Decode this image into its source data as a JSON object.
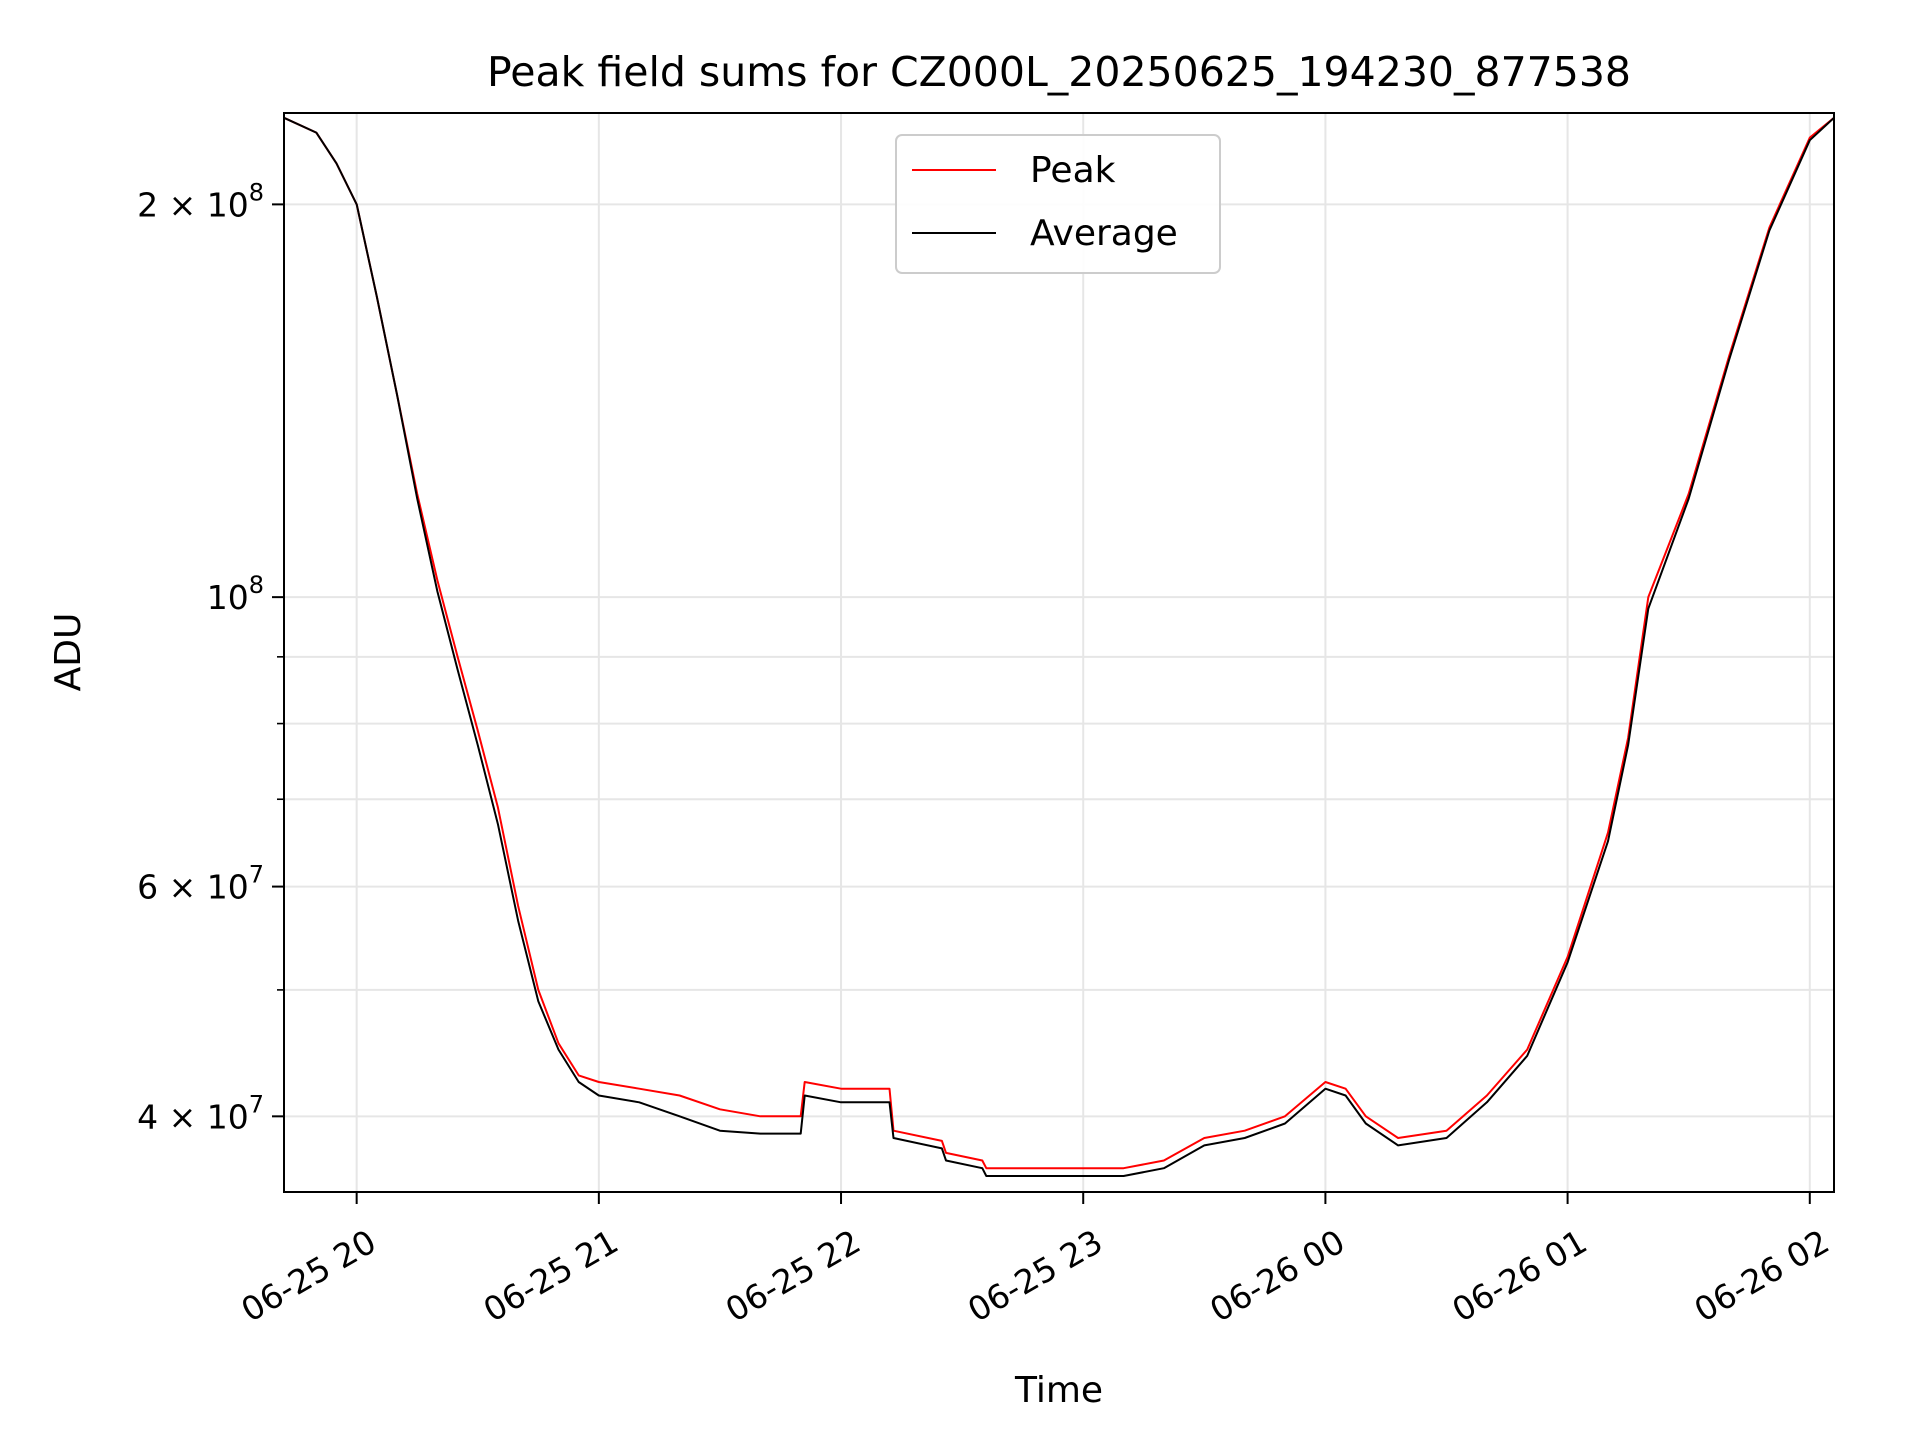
{
  "chart_data": {
    "type": "line",
    "title": "Peak field sums for CZ000L_20250625_194230_877538",
    "xlabel": "Time",
    "ylabel": "ADU",
    "y_scale": "log",
    "xlim": [
      "2025-06-25 19:42",
      "2025-06-26 02:06"
    ],
    "ylim": [
      35000000,
      235000000
    ],
    "grid": true,
    "legend": "upper center",
    "x_ticks": [
      {
        "value": "2025-06-25 20:00",
        "label": "06-25 20"
      },
      {
        "value": "2025-06-25 21:00",
        "label": "06-25 21"
      },
      {
        "value": "2025-06-25 22:00",
        "label": "06-25 22"
      },
      {
        "value": "2025-06-25 23:00",
        "label": "06-25 23"
      },
      {
        "value": "2025-06-26 00:00",
        "label": "06-26 00"
      },
      {
        "value": "2025-06-26 01:00",
        "label": "06-26 01"
      },
      {
        "value": "2025-06-26 02:00",
        "label": "06-26 02"
      }
    ],
    "y_ticks": [
      {
        "value": 40000000,
        "base": "4 × 10",
        "exp": "7"
      },
      {
        "value": 60000000,
        "base": "6 × 10",
        "exp": "7"
      },
      {
        "value": 100000000,
        "base": "10",
        "exp": "8"
      },
      {
        "value": 200000000,
        "base": "2 × 10",
        "exp": "8"
      }
    ],
    "y_minor_ticks": [
      50000000,
      70000000,
      80000000,
      90000000
    ],
    "series": [
      {
        "name": "Peak",
        "color": "#ff0000",
        "x": [
          "2025-06-25 19:42",
          "2025-06-25 19:50",
          "2025-06-25 19:55",
          "2025-06-25 20:00",
          "2025-06-25 20:05",
          "2025-06-25 20:10",
          "2025-06-25 20:15",
          "2025-06-25 20:20",
          "2025-06-25 20:25",
          "2025-06-25 20:30",
          "2025-06-25 20:35",
          "2025-06-25 20:40",
          "2025-06-25 20:45",
          "2025-06-25 20:50",
          "2025-06-25 20:55",
          "2025-06-25 21:00",
          "2025-06-25 21:10",
          "2025-06-25 21:20",
          "2025-06-25 21:30",
          "2025-06-25 21:40",
          "2025-06-25 21:50",
          "2025-06-25 21:51",
          "2025-06-25 22:00",
          "2025-06-25 22:12",
          "2025-06-25 22:13",
          "2025-06-25 22:25",
          "2025-06-25 22:26",
          "2025-06-25 22:35",
          "2025-06-25 22:36",
          "2025-06-25 22:45",
          "2025-06-25 23:00",
          "2025-06-25 23:10",
          "2025-06-25 23:20",
          "2025-06-25 23:30",
          "2025-06-25 23:40",
          "2025-06-25 23:50",
          "2025-06-26 00:00",
          "2025-06-26 00:05",
          "2025-06-26 00:10",
          "2025-06-26 00:18",
          "2025-06-26 00:30",
          "2025-06-26 00:40",
          "2025-06-26 00:50",
          "2025-06-26 01:00",
          "2025-06-26 01:10",
          "2025-06-26 01:15",
          "2025-06-26 01:20",
          "2025-06-26 01:30",
          "2025-06-26 01:40",
          "2025-06-26 01:50",
          "2025-06-26 02:00",
          "2025-06-26 02:06"
        ],
        "y": [
          233000000,
          227000000,
          215000000,
          200000000,
          170000000,
          143000000,
          120000000,
          103000000,
          90000000,
          79000000,
          69000000,
          58000000,
          50000000,
          45500000,
          43000000,
          42500000,
          42000000,
          41500000,
          40500000,
          40000000,
          40000000,
          42500000,
          42000000,
          42000000,
          39000000,
          38300000,
          37500000,
          37000000,
          36500000,
          36500000,
          36500000,
          36500000,
          37000000,
          38500000,
          39000000,
          40000000,
          42500000,
          42000000,
          40000000,
          38500000,
          39000000,
          41500000,
          45000000,
          53000000,
          66000000,
          78000000,
          100000000,
          120000000,
          153000000,
          192000000,
          225000000,
          233000000
        ]
      },
      {
        "name": "Average",
        "color": "#000000",
        "x": [
          "2025-06-25 19:42",
          "2025-06-25 19:50",
          "2025-06-25 19:55",
          "2025-06-25 20:00",
          "2025-06-25 20:05",
          "2025-06-25 20:10",
          "2025-06-25 20:15",
          "2025-06-25 20:20",
          "2025-06-25 20:25",
          "2025-06-25 20:30",
          "2025-06-25 20:35",
          "2025-06-25 20:40",
          "2025-06-25 20:45",
          "2025-06-25 20:50",
          "2025-06-25 20:55",
          "2025-06-25 21:00",
          "2025-06-25 21:10",
          "2025-06-25 21:20",
          "2025-06-25 21:30",
          "2025-06-25 21:40",
          "2025-06-25 21:50",
          "2025-06-25 21:51",
          "2025-06-25 22:00",
          "2025-06-25 22:12",
          "2025-06-25 22:13",
          "2025-06-25 22:25",
          "2025-06-25 22:26",
          "2025-06-25 22:35",
          "2025-06-25 22:36",
          "2025-06-25 22:45",
          "2025-06-25 23:00",
          "2025-06-25 23:10",
          "2025-06-25 23:20",
          "2025-06-25 23:30",
          "2025-06-25 23:40",
          "2025-06-25 23:50",
          "2025-06-26 00:00",
          "2025-06-26 00:05",
          "2025-06-26 00:10",
          "2025-06-26 00:18",
          "2025-06-26 00:30",
          "2025-06-26 00:40",
          "2025-06-26 00:50",
          "2025-06-26 01:00",
          "2025-06-26 01:10",
          "2025-06-26 01:15",
          "2025-06-26 01:20",
          "2025-06-26 01:30",
          "2025-06-26 01:40",
          "2025-06-26 01:50",
          "2025-06-26 02:00",
          "2025-06-26 02:06"
        ],
        "y": [
          233000000,
          227000000,
          215000000,
          200000000,
          170000000,
          143000000,
          119000000,
          101000000,
          88000000,
          77000000,
          67000000,
          56500000,
          49000000,
          45000000,
          42500000,
          41500000,
          41000000,
          40000000,
          39000000,
          38800000,
          38800000,
          41500000,
          41000000,
          41000000,
          38500000,
          37800000,
          37000000,
          36500000,
          36000000,
          36000000,
          36000000,
          36000000,
          36500000,
          38000000,
          38500000,
          39500000,
          42000000,
          41500000,
          39500000,
          38000000,
          38500000,
          41000000,
          44500000,
          52500000,
          65000000,
          77000000,
          98000000,
          119000000,
          152000000,
          191000000,
          224000000,
          233000000
        ]
      }
    ]
  }
}
